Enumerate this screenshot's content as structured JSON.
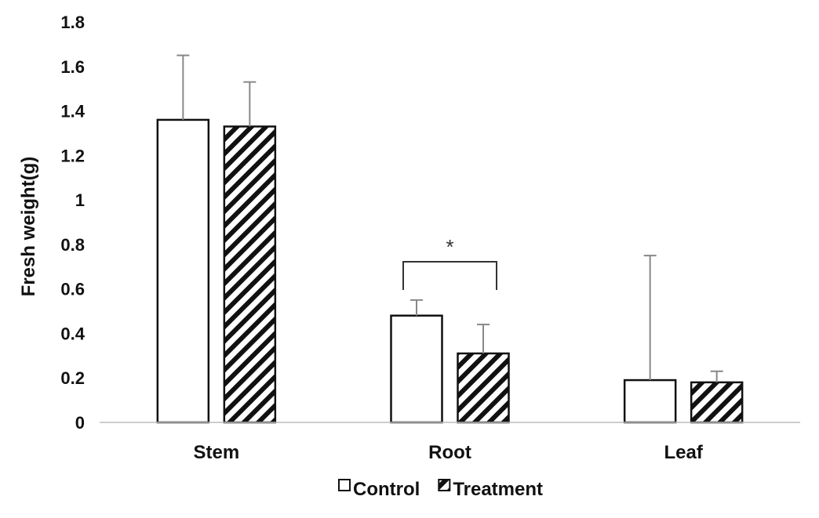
{
  "chart_data": {
    "type": "bar",
    "title": "",
    "xlabel": "",
    "ylabel": "Fresh weight(g)",
    "ylim": [
      0,
      1.8
    ],
    "yticks": [
      "0",
      "0.2",
      "0.4",
      "0.6",
      "0.8",
      "1",
      "1.2",
      "1.4",
      "1.6",
      "1.8"
    ],
    "categories": [
      "Stem",
      "Root",
      "Leaf"
    ],
    "series": [
      {
        "name": "Control",
        "pattern": "open",
        "values": [
          1.36,
          0.48,
          0.19
        ],
        "errors": [
          0.29,
          0.07,
          0.56
        ]
      },
      {
        "name": "Treatment",
        "pattern": "hatched",
        "values": [
          1.33,
          0.31,
          0.18
        ],
        "errors": [
          0.2,
          0.13,
          0.05
        ]
      }
    ],
    "annotations": [
      {
        "text": "*",
        "category": "Root",
        "between": [
          "Control",
          "Treatment"
        ]
      }
    ],
    "grid": false,
    "legend_position": "bottom-center",
    "colors": {
      "bar_fill": "#ffffff",
      "bar_stroke": "#111111",
      "hatch": "#111111",
      "error_bar": "#888888",
      "axis": "#bbbbbb"
    }
  }
}
